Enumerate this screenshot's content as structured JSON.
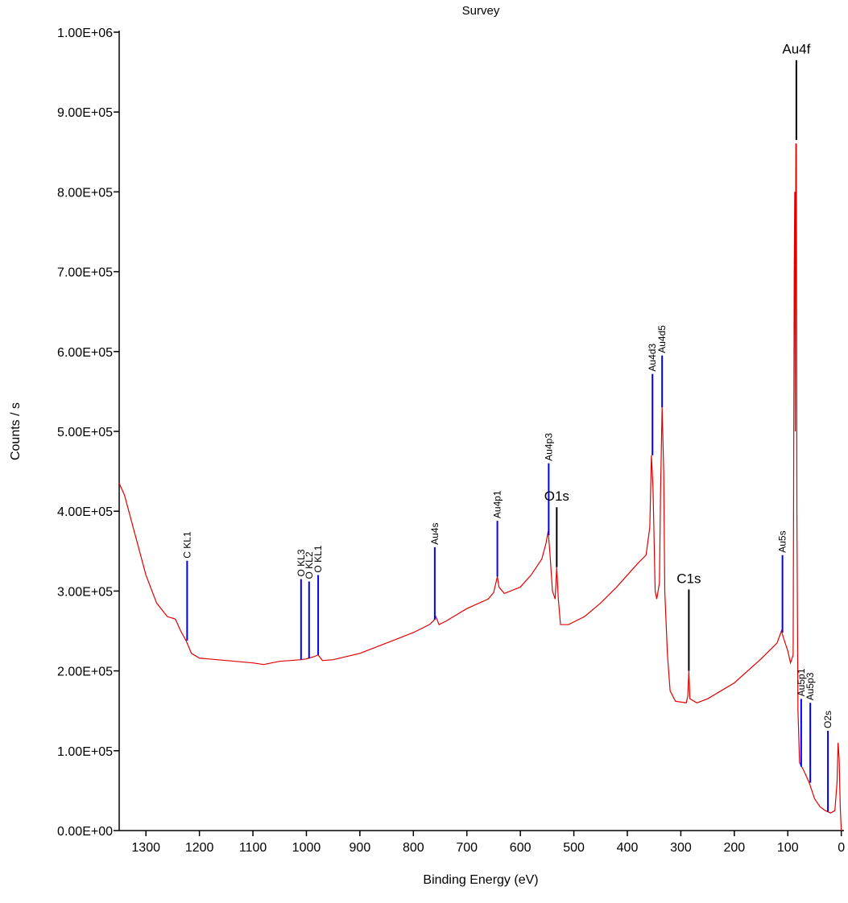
{
  "chart_data": {
    "type": "line",
    "title": "Survey",
    "xlabel": "Binding Energy (eV)",
    "ylabel": "Counts / s",
    "xlim": [
      1350,
      -5
    ],
    "ylim": [
      0,
      1000000
    ],
    "xticks": [
      1300,
      1200,
      1100,
      1000,
      900,
      800,
      700,
      600,
      500,
      400,
      300,
      200,
      100,
      0
    ],
    "yticks": [
      {
        "value": 0,
        "label": "0.00E+00"
      },
      {
        "value": 100000,
        "label": "1.00E+05"
      },
      {
        "value": 200000,
        "label": "2.00E+05"
      },
      {
        "value": 300000,
        "label": "3.00E+05"
      },
      {
        "value": 400000,
        "label": "4.00E+05"
      },
      {
        "value": 500000,
        "label": "5.00E+05"
      },
      {
        "value": 600000,
        "label": "6.00E+05"
      },
      {
        "value": 700000,
        "label": "7.00E+05"
      },
      {
        "value": 800000,
        "label": "8.00E+05"
      },
      {
        "value": 900000,
        "label": "9.00E+05"
      },
      {
        "value": 1000000,
        "label": "1.00E+06"
      }
    ],
    "x": [
      1350,
      1340,
      1320,
      1300,
      1280,
      1260,
      1245,
      1235,
      1225,
      1215,
      1200,
      1150,
      1100,
      1080,
      1050,
      1010,
      1000,
      985,
      978,
      970,
      950,
      900,
      850,
      800,
      770,
      762,
      758,
      752,
      740,
      700,
      660,
      650,
      643,
      640,
      630,
      600,
      580,
      560,
      552,
      548,
      545,
      540,
      535,
      532,
      529,
      525,
      510,
      480,
      450,
      420,
      400,
      380,
      365,
      358,
      355,
      352,
      348,
      345,
      340,
      338,
      335,
      332,
      330,
      325,
      320,
      310,
      290,
      287,
      285,
      283,
      270,
      250,
      200,
      150,
      120,
      112,
      105,
      100,
      95,
      90,
      88,
      87,
      86,
      85,
      84,
      83,
      81,
      78,
      70,
      60,
      50,
      40,
      30,
      20,
      12,
      8,
      6,
      4,
      2,
      0
    ],
    "series": [
      {
        "color": "#e00000",
        "values": [
          435000,
          420000,
          370000,
          320000,
          285000,
          268000,
          265000,
          250000,
          238000,
          222000,
          216000,
          213000,
          210000,
          208000,
          212000,
          214000,
          215000,
          218000,
          220000,
          213000,
          214000,
          222000,
          235000,
          248000,
          258000,
          263000,
          268000,
          258000,
          262000,
          278000,
          290000,
          298000,
          318000,
          305000,
          297000,
          305000,
          320000,
          340000,
          360000,
          375000,
          350000,
          300000,
          290000,
          330000,
          290000,
          258000,
          258000,
          268000,
          285000,
          305000,
          320000,
          335000,
          345000,
          380000,
          470000,
          430000,
          300000,
          290000,
          310000,
          420000,
          530000,
          450000,
          300000,
          220000,
          175000,
          162000,
          160000,
          168000,
          200000,
          165000,
          160000,
          165000,
          185000,
          215000,
          235000,
          250000,
          235000,
          225000,
          210000,
          220000,
          700000,
          800000,
          500000,
          860000,
          860000,
          400000,
          150000,
          85000,
          75000,
          60000,
          40000,
          30000,
          25000,
          22000,
          25000,
          60000,
          110000,
          90000,
          30000,
          0
        ]
      }
    ],
    "peak_labels": [
      {
        "label": "C KL1",
        "energy": 1223,
        "top": 338000,
        "bottom": 238000,
        "color": "#0000ff"
      },
      {
        "label": "O KL3",
        "energy": 1010,
        "top": 315000,
        "bottom": 214000,
        "color": "#0000ff"
      },
      {
        "label": "O KL2",
        "energy": 995,
        "top": 312000,
        "bottom": 216000,
        "color": "#0000ff"
      },
      {
        "label": "O KL1",
        "energy": 978,
        "top": 320000,
        "bottom": 220000,
        "color": "#0000ff"
      },
      {
        "label": "Au4s",
        "energy": 760,
        "top": 355000,
        "bottom": 264000,
        "color": "#0000ff"
      },
      {
        "label": "Au4p1",
        "energy": 643,
        "top": 388000,
        "bottom": 318000,
        "color": "#0000ff"
      },
      {
        "label": "Au4p3",
        "energy": 547,
        "top": 460000,
        "bottom": 370000,
        "color": "#0000ff"
      },
      {
        "label": "Au4d3",
        "energy": 353,
        "top": 572000,
        "bottom": 470000,
        "color": "#0000ff"
      },
      {
        "label": "Au4d5",
        "energy": 335,
        "top": 595000,
        "bottom": 530000,
        "color": "#0000ff"
      },
      {
        "label": "Au5s",
        "energy": 110,
        "top": 345000,
        "bottom": 248000,
        "color": "#0000ff"
      },
      {
        "label": "Au5p1",
        "energy": 75,
        "top": 165000,
        "bottom": 80000,
        "color": "#0000ff"
      },
      {
        "label": "Au5p3",
        "energy": 58,
        "top": 160000,
        "bottom": 60000,
        "color": "#0000ff"
      },
      {
        "label": "O2s",
        "energy": 25,
        "top": 125000,
        "bottom": 24000,
        "color": "#0000ff"
      },
      {
        "label": "Au4f",
        "energy": 84,
        "top": 965000,
        "bottom": 865000,
        "color": "#000000"
      },
      {
        "label": "O1s",
        "energy": 532,
        "top": 405000,
        "bottom": 330000,
        "color": "#000000"
      },
      {
        "label": "C1s",
        "energy": 285,
        "top": 302000,
        "bottom": 200000,
        "color": "#000000"
      }
    ]
  }
}
